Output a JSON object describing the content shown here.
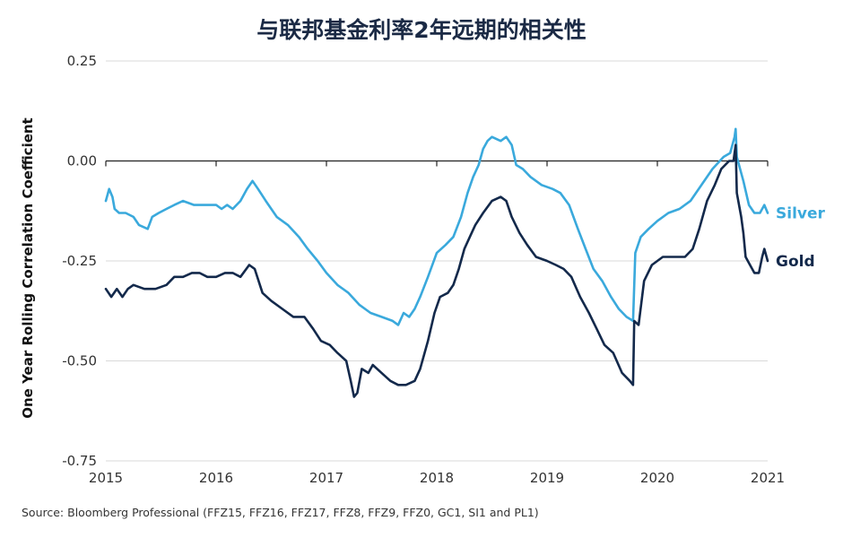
{
  "chart_data": {
    "type": "line",
    "title": "与联邦基金利率2年远期的相关性",
    "ylabel": "One Year Rolling Correlation Coefficient",
    "xlabel": "",
    "xlim": [
      2015,
      2021
    ],
    "ylim": [
      -0.75,
      0.25
    ],
    "x_ticks": [
      "2015",
      "2016",
      "2017",
      "2018",
      "2019",
      "2020",
      "2021"
    ],
    "y_ticks": [
      "0.25",
      "0.00",
      "-0.25",
      "-0.50",
      "-0.75"
    ],
    "y_tick_values": [
      0.25,
      0.0,
      -0.25,
      -0.5,
      -0.75
    ],
    "grid": true,
    "legend": "inline-right",
    "series": [
      {
        "name": "Silver",
        "color": "#3aa9dc",
        "points": [
          [
            2015.0,
            -0.1
          ],
          [
            2015.03,
            -0.07
          ],
          [
            2015.06,
            -0.09
          ],
          [
            2015.08,
            -0.12
          ],
          [
            2015.12,
            -0.13
          ],
          [
            2015.18,
            -0.13
          ],
          [
            2015.25,
            -0.14
          ],
          [
            2015.3,
            -0.16
          ],
          [
            2015.38,
            -0.17
          ],
          [
            2015.42,
            -0.14
          ],
          [
            2015.48,
            -0.13
          ],
          [
            2015.55,
            -0.12
          ],
          [
            2015.62,
            -0.11
          ],
          [
            2015.7,
            -0.1
          ],
          [
            2015.8,
            -0.11
          ],
          [
            2015.9,
            -0.11
          ],
          [
            2016.0,
            -0.11
          ],
          [
            2016.05,
            -0.12
          ],
          [
            2016.1,
            -0.11
          ],
          [
            2016.15,
            -0.12
          ],
          [
            2016.22,
            -0.1
          ],
          [
            2016.28,
            -0.07
          ],
          [
            2016.33,
            -0.05
          ],
          [
            2016.38,
            -0.07
          ],
          [
            2016.45,
            -0.1
          ],
          [
            2016.55,
            -0.14
          ],
          [
            2016.65,
            -0.16
          ],
          [
            2016.75,
            -0.19
          ],
          [
            2016.83,
            -0.22
          ],
          [
            2016.92,
            -0.25
          ],
          [
            2017.0,
            -0.28
          ],
          [
            2017.1,
            -0.31
          ],
          [
            2017.2,
            -0.33
          ],
          [
            2017.3,
            -0.36
          ],
          [
            2017.4,
            -0.38
          ],
          [
            2017.5,
            -0.39
          ],
          [
            2017.6,
            -0.4
          ],
          [
            2017.65,
            -0.41
          ],
          [
            2017.7,
            -0.38
          ],
          [
            2017.75,
            -0.39
          ],
          [
            2017.8,
            -0.37
          ],
          [
            2017.85,
            -0.34
          ],
          [
            2017.92,
            -0.29
          ],
          [
            2018.0,
            -0.23
          ],
          [
            2018.08,
            -0.21
          ],
          [
            2018.15,
            -0.19
          ],
          [
            2018.22,
            -0.14
          ],
          [
            2018.28,
            -0.08
          ],
          [
            2018.33,
            -0.04
          ],
          [
            2018.38,
            -0.01
          ],
          [
            2018.42,
            0.03
          ],
          [
            2018.46,
            0.05
          ],
          [
            2018.5,
            0.06
          ],
          [
            2018.58,
            0.05
          ],
          [
            2018.63,
            0.06
          ],
          [
            2018.68,
            0.04
          ],
          [
            2018.72,
            -0.01
          ],
          [
            2018.78,
            -0.02
          ],
          [
            2018.85,
            -0.04
          ],
          [
            2018.95,
            -0.06
          ],
          [
            2019.05,
            -0.07
          ],
          [
            2019.12,
            -0.08
          ],
          [
            2019.2,
            -0.11
          ],
          [
            2019.28,
            -0.17
          ],
          [
            2019.35,
            -0.22
          ],
          [
            2019.42,
            -0.27
          ],
          [
            2019.5,
            -0.3
          ],
          [
            2019.58,
            -0.34
          ],
          [
            2019.65,
            -0.37
          ],
          [
            2019.72,
            -0.39
          ],
          [
            2019.78,
            -0.4
          ],
          [
            2019.8,
            -0.23
          ],
          [
            2019.85,
            -0.19
          ],
          [
            2019.92,
            -0.17
          ],
          [
            2020.0,
            -0.15
          ],
          [
            2020.1,
            -0.13
          ],
          [
            2020.2,
            -0.12
          ],
          [
            2020.3,
            -0.1
          ],
          [
            2020.4,
            -0.06
          ],
          [
            2020.5,
            -0.02
          ],
          [
            2020.6,
            0.01
          ],
          [
            2020.66,
            0.02
          ],
          [
            2020.7,
            0.06
          ],
          [
            2020.71,
            0.08
          ],
          [
            2020.72,
            0.01
          ],
          [
            2020.78,
            -0.05
          ],
          [
            2020.83,
            -0.11
          ],
          [
            2020.88,
            -0.13
          ],
          [
            2020.93,
            -0.13
          ],
          [
            2020.97,
            -0.11
          ],
          [
            2021.0,
            -0.13
          ]
        ]
      },
      {
        "name": "Gold",
        "color": "#13294b",
        "points": [
          [
            2015.0,
            -0.32
          ],
          [
            2015.05,
            -0.34
          ],
          [
            2015.1,
            -0.32
          ],
          [
            2015.15,
            -0.34
          ],
          [
            2015.2,
            -0.32
          ],
          [
            2015.25,
            -0.31
          ],
          [
            2015.35,
            -0.32
          ],
          [
            2015.45,
            -0.32
          ],
          [
            2015.55,
            -0.31
          ],
          [
            2015.62,
            -0.29
          ],
          [
            2015.7,
            -0.29
          ],
          [
            2015.78,
            -0.28
          ],
          [
            2015.85,
            -0.28
          ],
          [
            2015.92,
            -0.29
          ],
          [
            2016.0,
            -0.29
          ],
          [
            2016.08,
            -0.28
          ],
          [
            2016.15,
            -0.28
          ],
          [
            2016.22,
            -0.29
          ],
          [
            2016.3,
            -0.26
          ],
          [
            2016.35,
            -0.27
          ],
          [
            2016.42,
            -0.33
          ],
          [
            2016.5,
            -0.35
          ],
          [
            2016.6,
            -0.37
          ],
          [
            2016.7,
            -0.39
          ],
          [
            2016.8,
            -0.39
          ],
          [
            2016.88,
            -0.42
          ],
          [
            2016.95,
            -0.45
          ],
          [
            2017.03,
            -0.46
          ],
          [
            2017.1,
            -0.48
          ],
          [
            2017.18,
            -0.5
          ],
          [
            2017.22,
            -0.55
          ],
          [
            2017.25,
            -0.59
          ],
          [
            2017.28,
            -0.58
          ],
          [
            2017.32,
            -0.52
          ],
          [
            2017.38,
            -0.53
          ],
          [
            2017.42,
            -0.51
          ],
          [
            2017.5,
            -0.53
          ],
          [
            2017.58,
            -0.55
          ],
          [
            2017.65,
            -0.56
          ],
          [
            2017.72,
            -0.56
          ],
          [
            2017.8,
            -0.55
          ],
          [
            2017.85,
            -0.52
          ],
          [
            2017.92,
            -0.45
          ],
          [
            2017.98,
            -0.38
          ],
          [
            2018.03,
            -0.34
          ],
          [
            2018.1,
            -0.33
          ],
          [
            2018.15,
            -0.31
          ],
          [
            2018.2,
            -0.27
          ],
          [
            2018.25,
            -0.22
          ],
          [
            2018.3,
            -0.19
          ],
          [
            2018.35,
            -0.16
          ],
          [
            2018.42,
            -0.13
          ],
          [
            2018.5,
            -0.1
          ],
          [
            2018.58,
            -0.09
          ],
          [
            2018.63,
            -0.1
          ],
          [
            2018.68,
            -0.14
          ],
          [
            2018.75,
            -0.18
          ],
          [
            2018.82,
            -0.21
          ],
          [
            2018.9,
            -0.24
          ],
          [
            2019.0,
            -0.25
          ],
          [
            2019.08,
            -0.26
          ],
          [
            2019.15,
            -0.27
          ],
          [
            2019.22,
            -0.29
          ],
          [
            2019.3,
            -0.34
          ],
          [
            2019.38,
            -0.38
          ],
          [
            2019.45,
            -0.42
          ],
          [
            2019.52,
            -0.46
          ],
          [
            2019.6,
            -0.48
          ],
          [
            2019.68,
            -0.53
          ],
          [
            2019.75,
            -0.55
          ],
          [
            2019.78,
            -0.56
          ],
          [
            2019.79,
            -0.4
          ],
          [
            2019.83,
            -0.41
          ],
          [
            2019.88,
            -0.3
          ],
          [
            2019.95,
            -0.26
          ],
          [
            2020.05,
            -0.24
          ],
          [
            2020.15,
            -0.24
          ],
          [
            2020.25,
            -0.24
          ],
          [
            2020.32,
            -0.22
          ],
          [
            2020.38,
            -0.17
          ],
          [
            2020.45,
            -0.1
          ],
          [
            2020.52,
            -0.06
          ],
          [
            2020.58,
            -0.02
          ],
          [
            2020.65,
            0.0
          ],
          [
            2020.69,
            0.0
          ],
          [
            2020.71,
            0.04
          ],
          [
            2020.72,
            -0.08
          ],
          [
            2020.76,
            -0.14
          ],
          [
            2020.78,
            -0.18
          ],
          [
            2020.8,
            -0.24
          ],
          [
            2020.84,
            -0.26
          ],
          [
            2020.88,
            -0.28
          ],
          [
            2020.92,
            -0.28
          ],
          [
            2020.95,
            -0.24
          ],
          [
            2020.97,
            -0.22
          ],
          [
            2021.0,
            -0.25
          ]
        ]
      }
    ]
  },
  "source": "Source: Bloomberg Professional (FFZ15, FFZ16, FFZ17, FFZ8, FFZ9, FFZ0, GC1, SI1 and PL1)"
}
